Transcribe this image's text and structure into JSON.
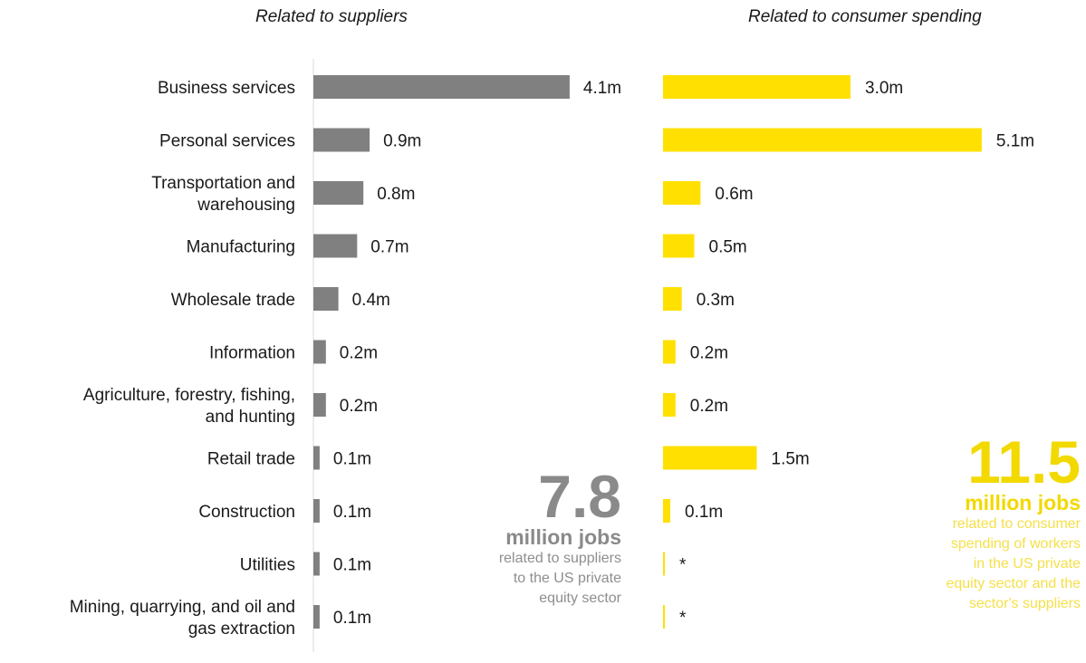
{
  "headers": {
    "left": "Related to suppliers",
    "right": "Related to consumer spending"
  },
  "colors": {
    "suppliers": "#808080",
    "consumer": "#FFE000",
    "axis": "#d9d9d9"
  },
  "summary_left": {
    "number": "7.8",
    "unit": "million jobs",
    "description": "related to suppliers to the US private equity sector",
    "lines": [
      "related to suppliers",
      "to the US private",
      "equity sector"
    ]
  },
  "summary_right": {
    "number": "11.5",
    "unit": "million jobs",
    "description": "related to consumer spending of workers in the US private equity sector and the sector's suppliers",
    "lines": [
      "related to consumer",
      "spending of workers",
      "in the US private",
      "equity sector and the",
      "sector's suppliers"
    ]
  },
  "chart_data": {
    "type": "bar",
    "orientation": "horizontal",
    "categories": [
      [
        "Business services"
      ],
      [
        "Personal services"
      ],
      [
        "Transportation and",
        "warehousing"
      ],
      [
        "Manufacturing"
      ],
      [
        "Wholesale trade"
      ],
      [
        "Information"
      ],
      [
        "Agriculture, forestry, fishing,",
        "and hunting"
      ],
      [
        "Retail trade"
      ],
      [
        "Construction"
      ],
      [
        "Utilities"
      ],
      [
        "Mining, quarrying, and oil and",
        "gas extraction"
      ]
    ],
    "series": [
      {
        "name": "Related to suppliers",
        "values": [
          4.1,
          0.9,
          0.8,
          0.7,
          0.4,
          0.2,
          0.2,
          0.1,
          0.1,
          0.1,
          0.1
        ],
        "labels": [
          "4.1m",
          "0.9m",
          "0.8m",
          "0.7m",
          "0.4m",
          "0.2m",
          "0.2m",
          "0.1m",
          "0.1m",
          "0.1m",
          "0.1m"
        ]
      },
      {
        "name": "Related to consumer spending",
        "values": [
          3.0,
          5.1,
          0.6,
          0.5,
          0.3,
          0.2,
          0.2,
          1.5,
          0.1,
          0.0,
          0.0
        ],
        "labels": [
          "3.0m",
          "5.1m",
          "0.6m",
          "0.5m",
          "0.3m",
          "0.2m",
          "0.2m",
          "1.5m",
          "0.1m",
          "*",
          "*"
        ]
      }
    ],
    "units": "million jobs",
    "grid": false,
    "legend": "none"
  }
}
